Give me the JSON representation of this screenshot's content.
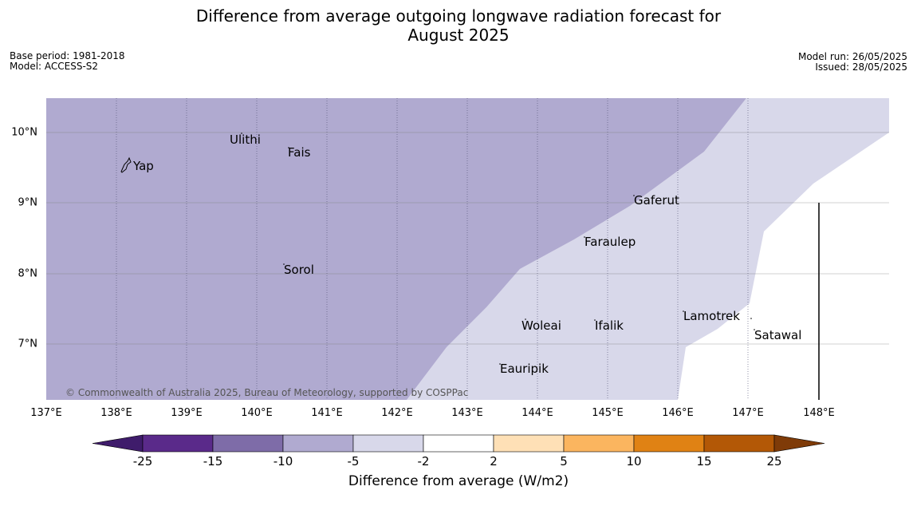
{
  "title_line1": "Difference from average outgoing longwave radiation forecast for",
  "title_line2": "August 2025",
  "meta_left": {
    "base_period": "Base period: 1981-2018",
    "model": "Model: ACCESS-S2"
  },
  "meta_right": {
    "model_run": "Model run: 26/05/2025",
    "issued": "Issued: 28/05/2025"
  },
  "axes": {
    "lon_ticks": [
      "137°E",
      "138°E",
      "139°E",
      "140°E",
      "141°E",
      "142°E",
      "143°E",
      "144°E",
      "145°E",
      "146°E",
      "147°E",
      "148°E"
    ],
    "lat_ticks": [
      "10°N",
      "9°N",
      "8°N",
      "7°N"
    ],
    "lon_range": [
      137,
      149
    ],
    "lat_range": [
      6.2,
      10.5
    ]
  },
  "places": [
    {
      "name": "Yap",
      "lon": 138.2,
      "lat": 9.52
    },
    {
      "name": "Ulithi",
      "lon": 139.7,
      "lat": 9.9
    },
    {
      "name": "Fais",
      "lon": 140.5,
      "lat": 9.75
    },
    {
      "name": "Gaferut",
      "lon": 145.4,
      "lat": 9.05
    },
    {
      "name": "Faraulep",
      "lon": 144.6,
      "lat": 8.5
    },
    {
      "name": "Sorol",
      "lon": 140.4,
      "lat": 8.1
    },
    {
      "name": "Woleai",
      "lon": 143.9,
      "lat": 7.32
    },
    {
      "name": "Ifalik",
      "lon": 144.45,
      "lat": 7.3
    },
    {
      "name": "Lamotrek",
      "lon": 146.4,
      "lat": 7.45
    },
    {
      "name": "Satawal",
      "lon": 147.05,
      "lat": 7.2
    },
    {
      "name": "Eauripik",
      "lon": 143.1,
      "lat": 6.7
    }
  ],
  "copyright": "© Commonwealth of Australia 2025, Bureau of Meteorology, supported by COSPPac",
  "colorbar": {
    "ticks": [
      "-25",
      "-15",
      "-10",
      "-5",
      "-2",
      "2",
      "5",
      "10",
      "15",
      "25"
    ],
    "colors": [
      "#3f1c6b",
      "#5a2a8a",
      "#7e6ca8",
      "#b0aad0",
      "#d8d8ea",
      "#ffffff",
      "#fee0b6",
      "#fbb55f",
      "#e08214",
      "#b35806",
      "#7f3b08"
    ],
    "label": "Difference from average (W/m2)"
  },
  "map_colors": {
    "region_dark": "#b0aad0",
    "region_light": "#d8d8ea",
    "region_white": "#ffffff"
  }
}
